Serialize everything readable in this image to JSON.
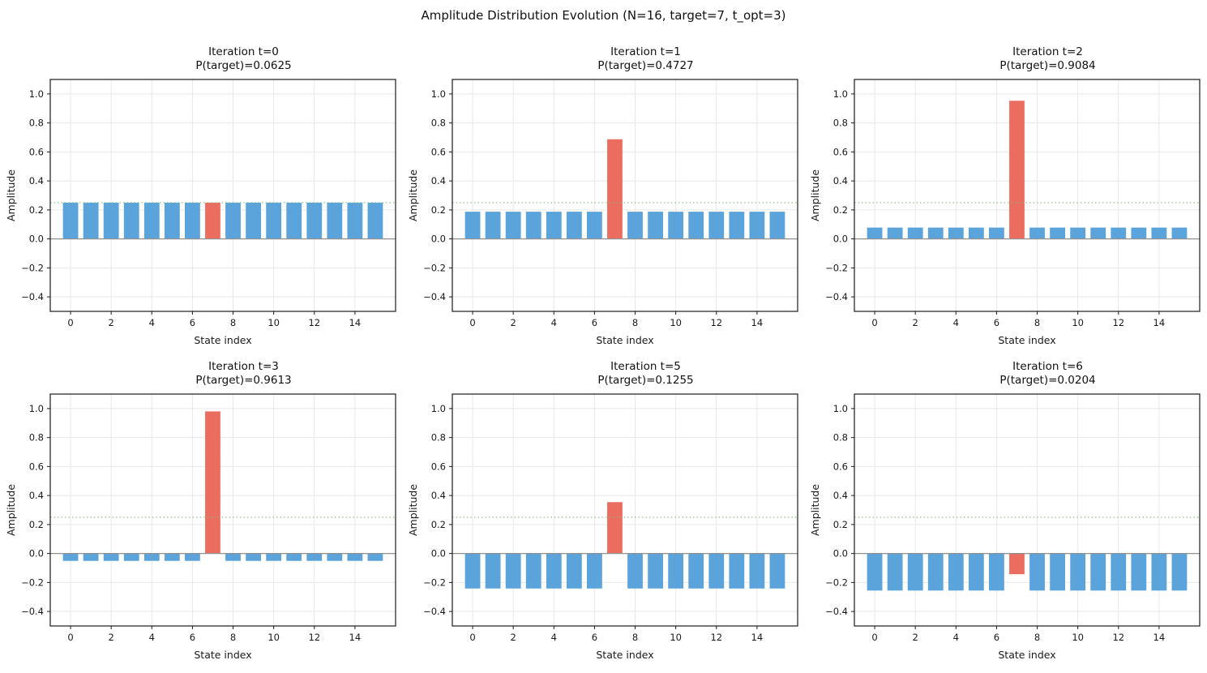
{
  "figure": {
    "title": "Amplitude Distribution Evolution (N=16, target=7, t_opt=3)"
  },
  "colors": {
    "bar_blue": "#5BA3DB",
    "bar_red": "#EB6D60",
    "reference_green": "#7FBF7F",
    "zero_line_gray": "#919191",
    "grid_gray": "#e8e8e8",
    "spine_black": "#1a1a1a"
  },
  "chart_data": [
    {
      "type": "bar",
      "title": "Iteration t=0",
      "subtitle": "P(target)=0.0625",
      "iteration": 0,
      "p_target": 0.0625,
      "categories": [
        0,
        1,
        2,
        3,
        4,
        5,
        6,
        7,
        8,
        9,
        10,
        11,
        12,
        13,
        14,
        15
      ],
      "values": [
        0.25,
        0.25,
        0.25,
        0.25,
        0.25,
        0.25,
        0.25,
        0.25,
        0.25,
        0.25,
        0.25,
        0.25,
        0.25,
        0.25,
        0.25,
        0.25
      ],
      "target_index": 7,
      "xlabel": "State index",
      "ylabel": "Amplitude",
      "ylim": [
        -0.5,
        1.1
      ],
      "xlim": [
        -1,
        16
      ],
      "yticks": [
        1.0,
        0.8,
        0.6,
        0.4,
        0.2,
        0.0,
        -0.2,
        -0.4
      ],
      "xticks": [
        0,
        2,
        4,
        6,
        8,
        10,
        12,
        14
      ],
      "reference_line": 0.25,
      "grid": true
    },
    {
      "type": "bar",
      "title": "Iteration t=1",
      "subtitle": "P(target)=0.4727",
      "iteration": 1,
      "p_target": 0.4727,
      "categories": [
        0,
        1,
        2,
        3,
        4,
        5,
        6,
        7,
        8,
        9,
        10,
        11,
        12,
        13,
        14,
        15
      ],
      "values": [
        0.1875,
        0.1875,
        0.1875,
        0.1875,
        0.1875,
        0.1875,
        0.1875,
        0.6875,
        0.1875,
        0.1875,
        0.1875,
        0.1875,
        0.1875,
        0.1875,
        0.1875,
        0.1875
      ],
      "target_index": 7,
      "xlabel": "State index",
      "ylabel": "Amplitude",
      "ylim": [
        -0.5,
        1.1
      ],
      "xlim": [
        -1,
        16
      ],
      "yticks": [
        1.0,
        0.8,
        0.6,
        0.4,
        0.2,
        0.0,
        -0.2,
        -0.4
      ],
      "xticks": [
        0,
        2,
        4,
        6,
        8,
        10,
        12,
        14
      ],
      "reference_line": 0.25,
      "grid": true
    },
    {
      "type": "bar",
      "title": "Iteration t=2",
      "subtitle": "P(target)=0.9084",
      "iteration": 2,
      "p_target": 0.9084,
      "categories": [
        0,
        1,
        2,
        3,
        4,
        5,
        6,
        7,
        8,
        9,
        10,
        11,
        12,
        13,
        14,
        15
      ],
      "values": [
        0.0781,
        0.0781,
        0.0781,
        0.0781,
        0.0781,
        0.0781,
        0.0781,
        0.9531,
        0.0781,
        0.0781,
        0.0781,
        0.0781,
        0.0781,
        0.0781,
        0.0781,
        0.0781
      ],
      "target_index": 7,
      "xlabel": "State index",
      "ylabel": "Amplitude",
      "ylim": [
        -0.5,
        1.1
      ],
      "xlim": [
        -1,
        16
      ],
      "yticks": [
        1.0,
        0.8,
        0.6,
        0.4,
        0.2,
        0.0,
        -0.2,
        -0.4
      ],
      "xticks": [
        0,
        2,
        4,
        6,
        8,
        10,
        12,
        14
      ],
      "reference_line": 0.25,
      "grid": true
    },
    {
      "type": "bar",
      "title": "Iteration t=3",
      "subtitle": "P(target)=0.9613",
      "iteration": 3,
      "p_target": 0.9613,
      "categories": [
        0,
        1,
        2,
        3,
        4,
        5,
        6,
        7,
        8,
        9,
        10,
        11,
        12,
        13,
        14,
        15
      ],
      "values": [
        -0.0508,
        -0.0508,
        -0.0508,
        -0.0508,
        -0.0508,
        -0.0508,
        -0.0508,
        0.9805,
        -0.0508,
        -0.0508,
        -0.0508,
        -0.0508,
        -0.0508,
        -0.0508,
        -0.0508,
        -0.0508
      ],
      "target_index": 7,
      "xlabel": "State index",
      "ylabel": "Amplitude",
      "ylim": [
        -0.5,
        1.1
      ],
      "xlim": [
        -1,
        16
      ],
      "yticks": [
        1.0,
        0.8,
        0.6,
        0.4,
        0.2,
        0.0,
        -0.2,
        -0.4
      ],
      "xticks": [
        0,
        2,
        4,
        6,
        8,
        10,
        12,
        14
      ],
      "reference_line": 0.25,
      "grid": true
    },
    {
      "type": "bar",
      "title": "Iteration t=5",
      "subtitle": "P(target)=0.1255",
      "iteration": 5,
      "p_target": 0.1255,
      "categories": [
        0,
        1,
        2,
        3,
        4,
        5,
        6,
        7,
        8,
        9,
        10,
        11,
        12,
        13,
        14,
        15
      ],
      "values": [
        -0.2415,
        -0.2415,
        -0.2415,
        -0.2415,
        -0.2415,
        -0.2415,
        -0.2415,
        0.3543,
        -0.2415,
        -0.2415,
        -0.2415,
        -0.2415,
        -0.2415,
        -0.2415,
        -0.2415,
        -0.2415
      ],
      "target_index": 7,
      "xlabel": "State index",
      "ylabel": "Amplitude",
      "ylim": [
        -0.5,
        1.1
      ],
      "xlim": [
        -1,
        16
      ],
      "yticks": [
        1.0,
        0.8,
        0.6,
        0.4,
        0.2,
        0.0,
        -0.2,
        -0.4
      ],
      "xticks": [
        0,
        2,
        4,
        6,
        8,
        10,
        12,
        14
      ],
      "reference_line": 0.25,
      "grid": true
    },
    {
      "type": "bar",
      "title": "Iteration t=6",
      "subtitle": "P(target)=0.0204",
      "iteration": 6,
      "p_target": 0.0204,
      "categories": [
        0,
        1,
        2,
        3,
        4,
        5,
        6,
        7,
        8,
        9,
        10,
        11,
        12,
        13,
        14,
        15
      ],
      "values": [
        -0.2556,
        -0.2556,
        -0.2556,
        -0.2556,
        -0.2556,
        -0.2556,
        -0.2556,
        -0.1429,
        -0.2556,
        -0.2556,
        -0.2556,
        -0.2556,
        -0.2556,
        -0.2556,
        -0.2556,
        -0.2556
      ],
      "target_index": 7,
      "xlabel": "State index",
      "ylabel": "Amplitude",
      "ylim": [
        -0.5,
        1.1
      ],
      "xlim": [
        -1,
        16
      ],
      "yticks": [
        1.0,
        0.8,
        0.6,
        0.4,
        0.2,
        0.0,
        -0.2,
        -0.4
      ],
      "xticks": [
        0,
        2,
        4,
        6,
        8,
        10,
        12,
        14
      ],
      "reference_line": 0.25,
      "grid": true
    }
  ]
}
